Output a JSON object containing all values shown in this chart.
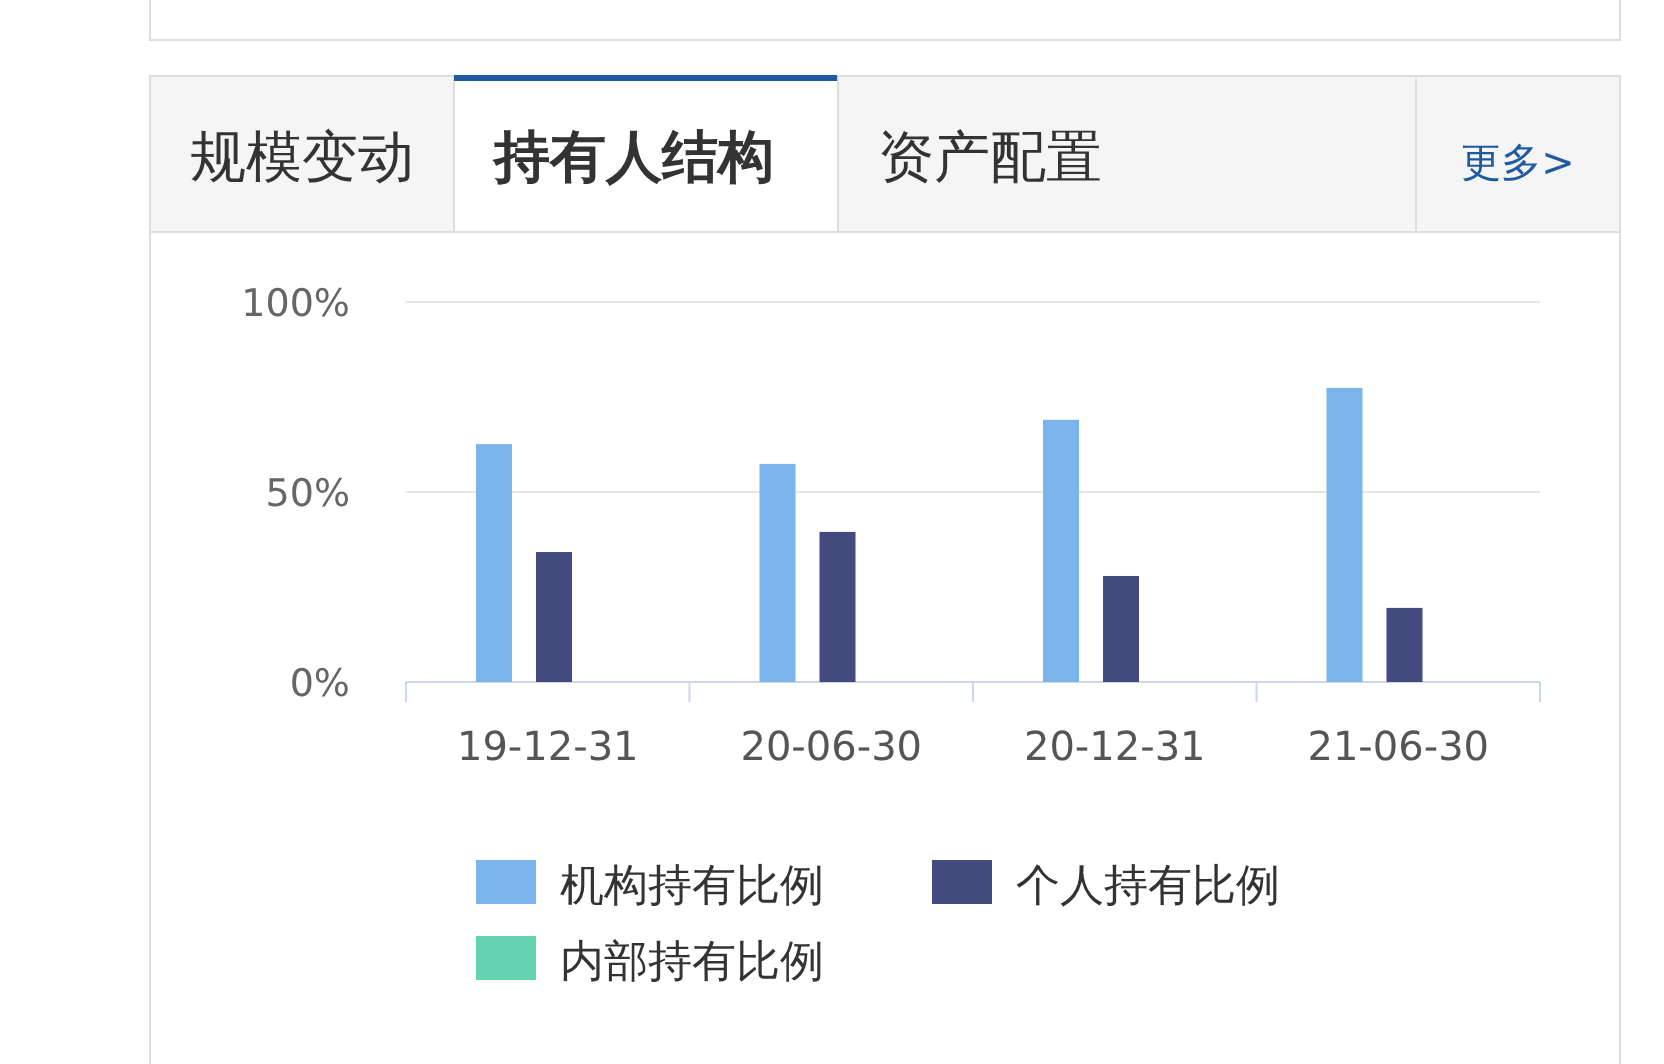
{
  "chart_data": {
    "type": "bar",
    "annotations": [
      "规模变动",
      "持有人结构",
      "资产配置",
      "更多>"
    ],
    "categories": [
      "19-12-31",
      "20-06-30",
      "20-12-31",
      "21-06-30"
    ],
    "series": [
      {
        "name": "机构持有比例",
        "color": "#7cb5ec",
        "values": [
          62.6,
          57.4,
          69,
          77.4
        ]
      },
      {
        "name": "个人持有比例",
        "color": "#434a7e",
        "values": [
          34.2,
          39.5,
          27.9,
          19.5
        ]
      },
      {
        "name": "内部持有比例",
        "color": "#64d3b0",
        "values": [
          0,
          0,
          0,
          0
        ]
      }
    ],
    "ylim": [
      0,
      100
    ],
    "yticks": [
      {
        "value": 0,
        "label": "0%"
      },
      {
        "value": 50,
        "label": "50%"
      },
      {
        "value": 100,
        "label": "100%"
      }
    ],
    "grid": "y",
    "legend": "bottom"
  }
}
